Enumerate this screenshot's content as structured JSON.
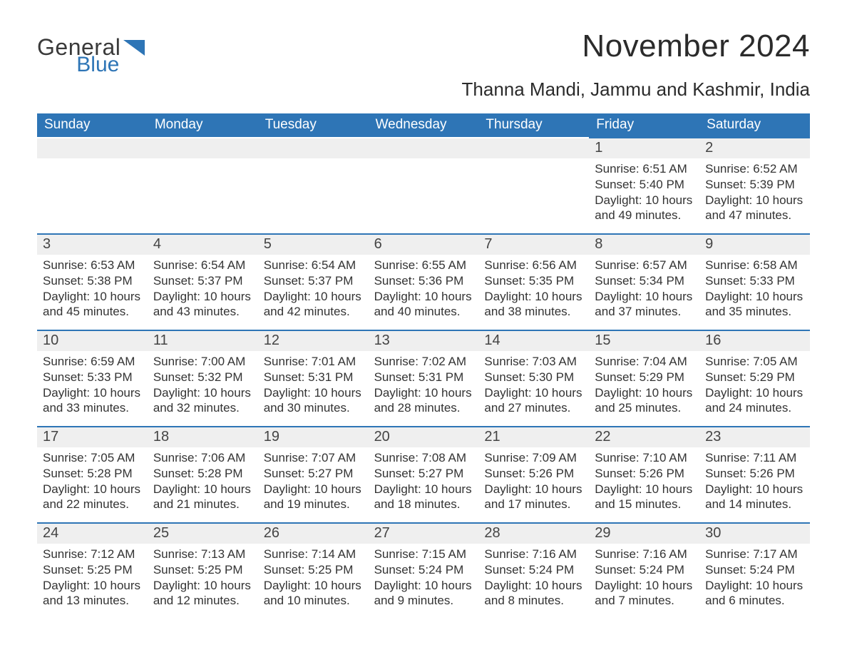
{
  "brand": {
    "general": "General",
    "blue": "Blue",
    "accent_color": "#2E75B6",
    "text_color": "#3a3a3a"
  },
  "title": "November 2024",
  "location": "Thanna Mandi, Jammu and Kashmir, India",
  "colors": {
    "header_bg": "#2E75B6",
    "header_text": "#ffffff",
    "row_border": "#2E75B6",
    "daynum_bg": "#efefef",
    "body_text": "#333333",
    "background": "#ffffff"
  },
  "typography": {
    "title_fontsize": 44,
    "location_fontsize": 26,
    "dow_fontsize": 19,
    "daynum_fontsize": 20,
    "detail_fontsize": 17,
    "font_family": "Segoe UI"
  },
  "days_of_week": [
    "Sunday",
    "Monday",
    "Tuesday",
    "Wednesday",
    "Thursday",
    "Friday",
    "Saturday"
  ],
  "weeks": [
    [
      {
        "blank": true
      },
      {
        "blank": true
      },
      {
        "blank": true
      },
      {
        "blank": true
      },
      {
        "blank": true
      },
      {
        "day": "1",
        "sunrise": "Sunrise: 6:51 AM",
        "sunset": "Sunset: 5:40 PM",
        "daylight1": "Daylight: 10 hours",
        "daylight2": "and 49 minutes."
      },
      {
        "day": "2",
        "sunrise": "Sunrise: 6:52 AM",
        "sunset": "Sunset: 5:39 PM",
        "daylight1": "Daylight: 10 hours",
        "daylight2": "and 47 minutes."
      }
    ],
    [
      {
        "day": "3",
        "sunrise": "Sunrise: 6:53 AM",
        "sunset": "Sunset: 5:38 PM",
        "daylight1": "Daylight: 10 hours",
        "daylight2": "and 45 minutes."
      },
      {
        "day": "4",
        "sunrise": "Sunrise: 6:54 AM",
        "sunset": "Sunset: 5:37 PM",
        "daylight1": "Daylight: 10 hours",
        "daylight2": "and 43 minutes."
      },
      {
        "day": "5",
        "sunrise": "Sunrise: 6:54 AM",
        "sunset": "Sunset: 5:37 PM",
        "daylight1": "Daylight: 10 hours",
        "daylight2": "and 42 minutes."
      },
      {
        "day": "6",
        "sunrise": "Sunrise: 6:55 AM",
        "sunset": "Sunset: 5:36 PM",
        "daylight1": "Daylight: 10 hours",
        "daylight2": "and 40 minutes."
      },
      {
        "day": "7",
        "sunrise": "Sunrise: 6:56 AM",
        "sunset": "Sunset: 5:35 PM",
        "daylight1": "Daylight: 10 hours",
        "daylight2": "and 38 minutes."
      },
      {
        "day": "8",
        "sunrise": "Sunrise: 6:57 AM",
        "sunset": "Sunset: 5:34 PM",
        "daylight1": "Daylight: 10 hours",
        "daylight2": "and 37 minutes."
      },
      {
        "day": "9",
        "sunrise": "Sunrise: 6:58 AM",
        "sunset": "Sunset: 5:33 PM",
        "daylight1": "Daylight: 10 hours",
        "daylight2": "and 35 minutes."
      }
    ],
    [
      {
        "day": "10",
        "sunrise": "Sunrise: 6:59 AM",
        "sunset": "Sunset: 5:33 PM",
        "daylight1": "Daylight: 10 hours",
        "daylight2": "and 33 minutes."
      },
      {
        "day": "11",
        "sunrise": "Sunrise: 7:00 AM",
        "sunset": "Sunset: 5:32 PM",
        "daylight1": "Daylight: 10 hours",
        "daylight2": "and 32 minutes."
      },
      {
        "day": "12",
        "sunrise": "Sunrise: 7:01 AM",
        "sunset": "Sunset: 5:31 PM",
        "daylight1": "Daylight: 10 hours",
        "daylight2": "and 30 minutes."
      },
      {
        "day": "13",
        "sunrise": "Sunrise: 7:02 AM",
        "sunset": "Sunset: 5:31 PM",
        "daylight1": "Daylight: 10 hours",
        "daylight2": "and 28 minutes."
      },
      {
        "day": "14",
        "sunrise": "Sunrise: 7:03 AM",
        "sunset": "Sunset: 5:30 PM",
        "daylight1": "Daylight: 10 hours",
        "daylight2": "and 27 minutes."
      },
      {
        "day": "15",
        "sunrise": "Sunrise: 7:04 AM",
        "sunset": "Sunset: 5:29 PM",
        "daylight1": "Daylight: 10 hours",
        "daylight2": "and 25 minutes."
      },
      {
        "day": "16",
        "sunrise": "Sunrise: 7:05 AM",
        "sunset": "Sunset: 5:29 PM",
        "daylight1": "Daylight: 10 hours",
        "daylight2": "and 24 minutes."
      }
    ],
    [
      {
        "day": "17",
        "sunrise": "Sunrise: 7:05 AM",
        "sunset": "Sunset: 5:28 PM",
        "daylight1": "Daylight: 10 hours",
        "daylight2": "and 22 minutes."
      },
      {
        "day": "18",
        "sunrise": "Sunrise: 7:06 AM",
        "sunset": "Sunset: 5:28 PM",
        "daylight1": "Daylight: 10 hours",
        "daylight2": "and 21 minutes."
      },
      {
        "day": "19",
        "sunrise": "Sunrise: 7:07 AM",
        "sunset": "Sunset: 5:27 PM",
        "daylight1": "Daylight: 10 hours",
        "daylight2": "and 19 minutes."
      },
      {
        "day": "20",
        "sunrise": "Sunrise: 7:08 AM",
        "sunset": "Sunset: 5:27 PM",
        "daylight1": "Daylight: 10 hours",
        "daylight2": "and 18 minutes."
      },
      {
        "day": "21",
        "sunrise": "Sunrise: 7:09 AM",
        "sunset": "Sunset: 5:26 PM",
        "daylight1": "Daylight: 10 hours",
        "daylight2": "and 17 minutes."
      },
      {
        "day": "22",
        "sunrise": "Sunrise: 7:10 AM",
        "sunset": "Sunset: 5:26 PM",
        "daylight1": "Daylight: 10 hours",
        "daylight2": "and 15 minutes."
      },
      {
        "day": "23",
        "sunrise": "Sunrise: 7:11 AM",
        "sunset": "Sunset: 5:26 PM",
        "daylight1": "Daylight: 10 hours",
        "daylight2": "and 14 minutes."
      }
    ],
    [
      {
        "day": "24",
        "sunrise": "Sunrise: 7:12 AM",
        "sunset": "Sunset: 5:25 PM",
        "daylight1": "Daylight: 10 hours",
        "daylight2": "and 13 minutes."
      },
      {
        "day": "25",
        "sunrise": "Sunrise: 7:13 AM",
        "sunset": "Sunset: 5:25 PM",
        "daylight1": "Daylight: 10 hours",
        "daylight2": "and 12 minutes."
      },
      {
        "day": "26",
        "sunrise": "Sunrise: 7:14 AM",
        "sunset": "Sunset: 5:25 PM",
        "daylight1": "Daylight: 10 hours",
        "daylight2": "and 10 minutes."
      },
      {
        "day": "27",
        "sunrise": "Sunrise: 7:15 AM",
        "sunset": "Sunset: 5:24 PM",
        "daylight1": "Daylight: 10 hours",
        "daylight2": "and 9 minutes."
      },
      {
        "day": "28",
        "sunrise": "Sunrise: 7:16 AM",
        "sunset": "Sunset: 5:24 PM",
        "daylight1": "Daylight: 10 hours",
        "daylight2": "and 8 minutes."
      },
      {
        "day": "29",
        "sunrise": "Sunrise: 7:16 AM",
        "sunset": "Sunset: 5:24 PM",
        "daylight1": "Daylight: 10 hours",
        "daylight2": "and 7 minutes."
      },
      {
        "day": "30",
        "sunrise": "Sunrise: 7:17 AM",
        "sunset": "Sunset: 5:24 PM",
        "daylight1": "Daylight: 10 hours",
        "daylight2": "and 6 minutes."
      }
    ]
  ]
}
